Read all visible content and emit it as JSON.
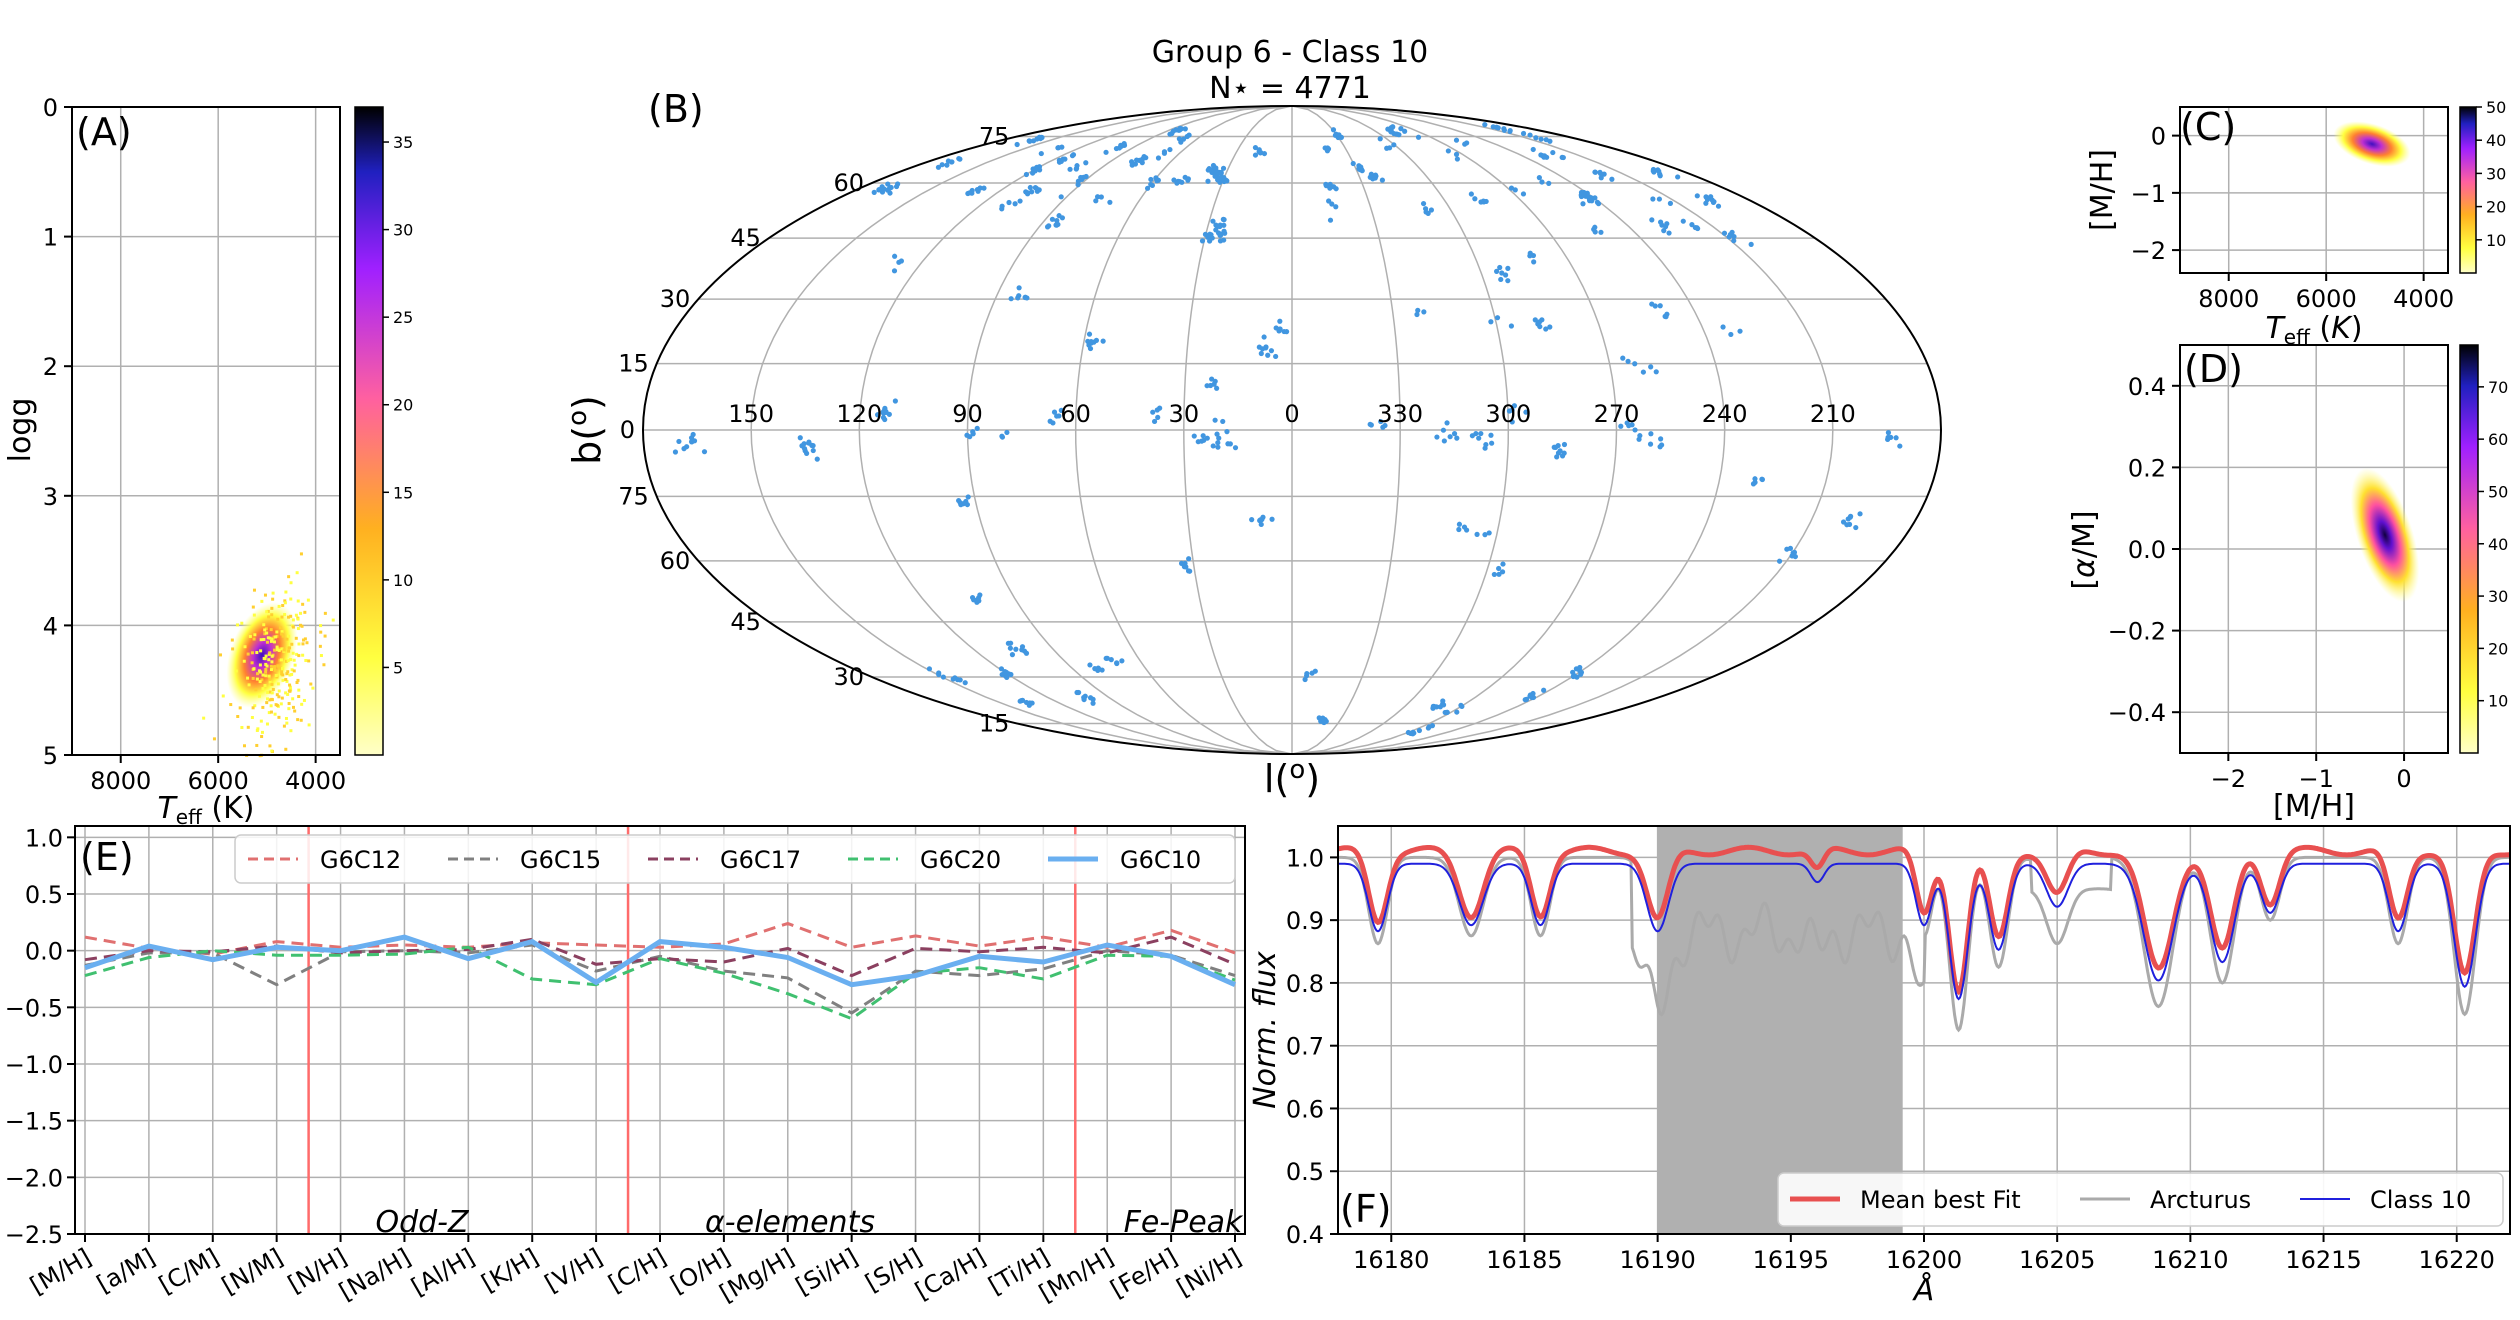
{
  "title": "Group 6 - Class 10",
  "subtitle": "N⋆ = 4771",
  "chart_data": [
    {
      "panel": "A",
      "type": "heatmap",
      "label": "(A)",
      "xlabel": "T_eff (K)",
      "ylabel": "logg",
      "xlim": [
        9000,
        3500
      ],
      "ylim": [
        5,
        0
      ],
      "xticks": [
        8000,
        6000,
        4000
      ],
      "yticks": [
        0,
        1,
        2,
        3,
        4,
        5
      ],
      "colorbar": {
        "min": 0,
        "max": 37,
        "ticks": [
          5,
          10,
          15,
          20,
          25,
          30,
          35
        ]
      },
      "density_center": {
        "teff": 4850,
        "logg": 4.3
      }
    },
    {
      "panel": "B",
      "type": "scatter",
      "label": "(B)",
      "xlabel": "l(°)",
      "ylabel": "b(°)",
      "projection": "mollweide",
      "lon_tick_labels": [
        "150",
        "120",
        "90",
        "60",
        "30",
        "0",
        "330",
        "300",
        "270",
        "240",
        "210"
      ],
      "lat_tick_labels_top": [
        "75",
        "60",
        "45",
        "30",
        "15",
        "0"
      ],
      "lat_tick_labels_bottom": [
        "75",
        "60",
        "45",
        "30",
        "15"
      ],
      "point_color": "#4196e0"
    },
    {
      "panel": "C",
      "type": "heatmap",
      "label": "(C)",
      "xlabel": "T_eff (K)",
      "ylabel": "[M/H]",
      "xlim": [
        9000,
        3500
      ],
      "ylim": [
        -2.4,
        0.5
      ],
      "xticks": [
        8000,
        6000,
        4000
      ],
      "yticks": [
        0,
        -1,
        -2
      ],
      "colorbar": {
        "min": 0,
        "max": 50,
        "ticks": [
          10,
          20,
          30,
          40,
          50
        ]
      },
      "density_center": {
        "teff": 4750,
        "mh": -0.25
      }
    },
    {
      "panel": "D",
      "type": "heatmap",
      "label": "(D)",
      "xlabel": "[M/H]",
      "ylabel": "[α/M]",
      "xlim": [
        -2.55,
        0.5
      ],
      "ylim": [
        -0.5,
        0.5
      ],
      "xticks": [
        -2,
        -1,
        0
      ],
      "yticks": [
        0.4,
        0.2,
        0.0,
        -0.2,
        -0.4
      ],
      "colorbar": {
        "min": 0,
        "max": 78,
        "ticks": [
          10,
          20,
          30,
          40,
          50,
          60,
          70
        ]
      },
      "density_center": {
        "mh": -0.2,
        "am": 0.03
      }
    },
    {
      "panel": "E",
      "type": "line",
      "label": "(E)",
      "categories": [
        "[M/H]",
        "[a/M]",
        "[C/M]",
        "[N/M]",
        "[N/H]",
        "[Na/H]",
        "[Al/H]",
        "[K/H]",
        "[V/H]",
        "[C/H]",
        "[O/H]",
        "[Mg/H]",
        "[Si/H]",
        "[S/H]",
        "[Ca/H]",
        "[Ti/H]",
        "[Mn/H]",
        "[Fe/H]",
        "[Ni/H]"
      ],
      "ylim": [
        -2.5,
        1.1
      ],
      "yticks": [
        1.0,
        0.5,
        0.0,
        -0.5,
        -1.0,
        -1.5,
        -2.0,
        -2.5
      ],
      "group_labels": [
        "Odd-Z",
        "α-elements",
        "Fe-Peak"
      ],
      "group_separators_after_index": [
        3,
        8,
        15
      ],
      "series": [
        {
          "name": "G6C12",
          "color": "#e07070",
          "dash": true,
          "values": [
            0.12,
            0.02,
            -0.03,
            0.08,
            0.03,
            0.05,
            0.03,
            0.07,
            0.05,
            0.03,
            0.06,
            0.24,
            0.03,
            0.13,
            0.04,
            0.12,
            0.03,
            0.18,
            -0.02
          ]
        },
        {
          "name": "G6C15",
          "color": "#808080",
          "dash": true,
          "values": [
            -0.13,
            -0.02,
            -0.02,
            -0.3,
            -0.01,
            0.0,
            -0.02,
            0.05,
            -0.18,
            -0.05,
            -0.18,
            -0.24,
            -0.55,
            -0.18,
            -0.22,
            -0.16,
            0.0,
            -0.04,
            -0.22
          ]
        },
        {
          "name": "G6C17",
          "color": "#8b4060",
          "dash": true,
          "values": [
            -0.08,
            0.0,
            -0.01,
            0.04,
            -0.02,
            0.0,
            0.01,
            0.1,
            -0.12,
            -0.07,
            -0.1,
            0.02,
            -0.22,
            0.02,
            -0.01,
            0.03,
            -0.02,
            0.12,
            -0.12
          ]
        },
        {
          "name": "G6C20",
          "color": "#40c070",
          "dash": true,
          "values": [
            -0.22,
            -0.06,
            0.0,
            -0.04,
            -0.04,
            -0.03,
            0.03,
            -0.25,
            -0.3,
            -0.07,
            -0.2,
            -0.38,
            -0.6,
            -0.2,
            -0.15,
            -0.25,
            -0.04,
            -0.05,
            -0.26
          ]
        },
        {
          "name": "G6C10",
          "color": "#6aaff0",
          "dash": false,
          "values": [
            -0.15,
            0.04,
            -0.08,
            0.03,
            0.0,
            0.12,
            -0.07,
            0.08,
            -0.28,
            0.08,
            0.03,
            -0.06,
            -0.3,
            -0.22,
            -0.05,
            -0.1,
            0.05,
            -0.05,
            -0.3
          ]
        }
      ]
    },
    {
      "panel": "F",
      "type": "line",
      "label": "(F)",
      "xlabel": "Å",
      "ylabel": "Norm. flux",
      "xlim": [
        16178,
        16222
      ],
      "ylim": [
        0.4,
        1.05
      ],
      "xticks": [
        16180,
        16185,
        16190,
        16195,
        16200,
        16205,
        16210,
        16215,
        16220
      ],
      "yticks": [
        1.0,
        0.9,
        0.8,
        0.7,
        0.6,
        0.5,
        0.4
      ],
      "shaded_region": [
        16190,
        16199.2
      ],
      "lines": [
        {
          "center": 16179.5,
          "depth": 0.11,
          "width": 0.35
        },
        {
          "center": 16183.0,
          "depth": 0.1,
          "width": 0.45
        },
        {
          "center": 16185.6,
          "depth": 0.1,
          "width": 0.35
        },
        {
          "center": 16190.0,
          "depth": 0.11,
          "width": 0.4
        },
        {
          "center": 16196.0,
          "depth": 0.03,
          "width": 0.25
        },
        {
          "center": 16200.0,
          "depth": 0.1,
          "width": 0.3
        },
        {
          "center": 16201.3,
          "depth": 0.22,
          "width": 0.35
        },
        {
          "center": 16202.8,
          "depth": 0.14,
          "width": 0.35
        },
        {
          "center": 16205.0,
          "depth": 0.07,
          "width": 0.4
        },
        {
          "center": 16208.8,
          "depth": 0.19,
          "width": 0.55
        },
        {
          "center": 16211.2,
          "depth": 0.16,
          "width": 0.45
        },
        {
          "center": 16213.0,
          "depth": 0.08,
          "width": 0.35
        },
        {
          "center": 16217.8,
          "depth": 0.11,
          "width": 0.35
        },
        {
          "center": 16220.3,
          "depth": 0.2,
          "width": 0.4
        }
      ],
      "series": [
        {
          "name": "Mean best Fit",
          "color": "#e85050",
          "continuum": 1.0
        },
        {
          "name": "Arcturus",
          "color": "#aaaaaa",
          "continuum": 1.0
        },
        {
          "name": "Class 10",
          "color": "#2020dd",
          "continuum": 0.99
        }
      ]
    }
  ]
}
